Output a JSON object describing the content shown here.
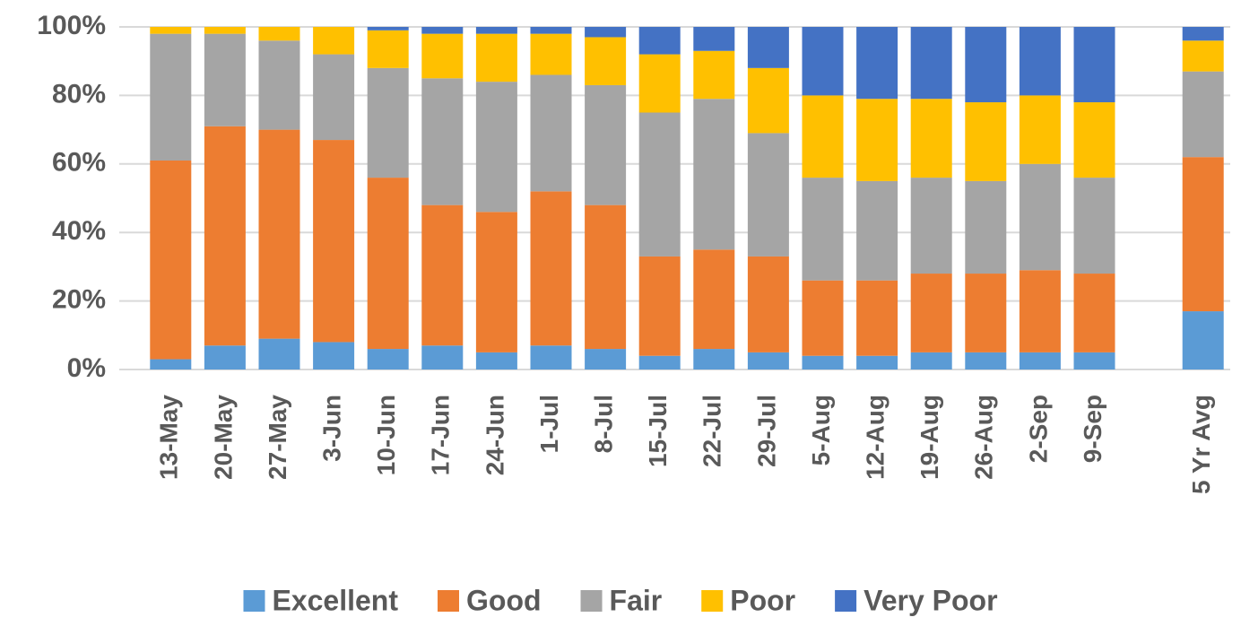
{
  "chart_data": {
    "type": "stacked_bar",
    "categories": [
      "13-May",
      "20-May",
      "27-May",
      "3-Jun",
      "10-Jun",
      "17-Jun",
      "24-Jun",
      "1-Jul",
      "8-Jul",
      "15-Jul",
      "22-Jul",
      "29-Jul",
      "5-Aug",
      "12-Aug",
      "19-Aug",
      "26-Aug",
      "2-Sep",
      "9-Sep",
      null,
      "5 Yr Avg"
    ],
    "series": [
      {
        "name": "Excellent",
        "color": "#5b9bd5",
        "values": [
          3,
          7,
          9,
          8,
          6,
          7,
          5,
          7,
          6,
          4,
          6,
          5,
          4,
          4,
          5,
          5,
          5,
          5,
          null,
          17
        ]
      },
      {
        "name": "Good",
        "color": "#ed7d31",
        "values": [
          58,
          64,
          61,
          59,
          50,
          41,
          41,
          45,
          42,
          29,
          29,
          28,
          22,
          22,
          23,
          23,
          24,
          23,
          null,
          45
        ]
      },
      {
        "name": "Fair",
        "color": "#a5a5a5",
        "values": [
          37,
          27,
          26,
          25,
          32,
          37,
          38,
          34,
          35,
          42,
          44,
          36,
          30,
          29,
          28,
          27,
          31,
          28,
          null,
          25
        ]
      },
      {
        "name": "Poor",
        "color": "#ffc000",
        "values": [
          2,
          2,
          4,
          8,
          11,
          13,
          14,
          12,
          14,
          17,
          14,
          19,
          24,
          24,
          23,
          23,
          20,
          22,
          null,
          9
        ]
      },
      {
        "name": "Very Poor",
        "color": "#4472c4",
        "values": [
          0,
          0,
          0,
          0,
          1,
          2,
          2,
          2,
          3,
          8,
          7,
          12,
          20,
          21,
          21,
          22,
          20,
          22,
          null,
          4
        ]
      }
    ],
    "ylim": [
      0,
      100
    ],
    "yticks": [
      {
        "value": 0,
        "label": "0%"
      },
      {
        "value": 20,
        "label": "20%"
      },
      {
        "value": 40,
        "label": "40%"
      },
      {
        "value": 60,
        "label": "60%"
      },
      {
        "value": 80,
        "label": "80%"
      },
      {
        "value": 100,
        "label": "100%"
      }
    ],
    "grid": true,
    "legend": "bottom"
  }
}
